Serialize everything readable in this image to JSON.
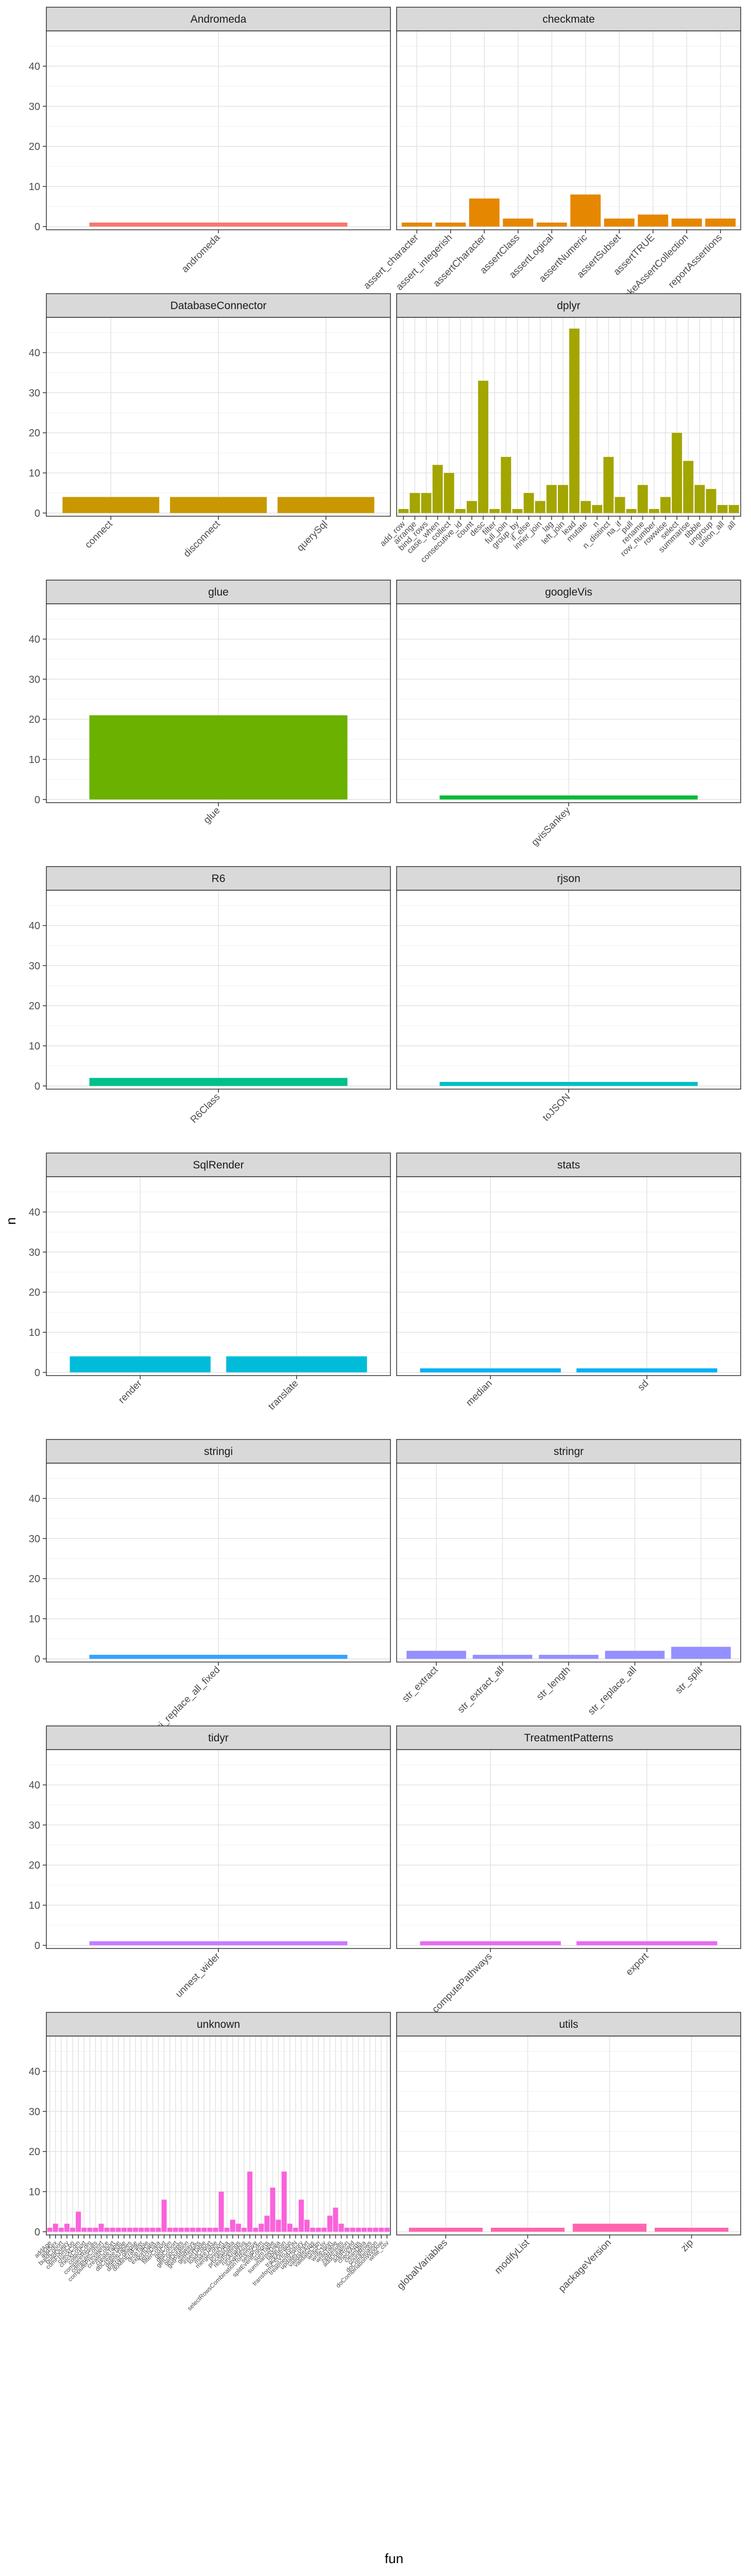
{
  "chart_data": {
    "type": "bar",
    "facet_layout": "ncol-2",
    "xlabel": "fun",
    "ylabel": "n",
    "ylim": [
      0,
      48
    ],
    "yticks": [
      0,
      10,
      20,
      30,
      40
    ],
    "grid": true,
    "legend": "none",
    "strip_fill": "#d9d9d9",
    "panels": [
      {
        "title": "Andromeda",
        "color": "#F8766D",
        "categories": [
          "andromeda"
        ],
        "values": [
          1
        ]
      },
      {
        "title": "checkmate",
        "color": "#E58700",
        "categories": [
          "assert_character",
          "assert_integerish",
          "assertCharacter",
          "assertClass",
          "assertLogical",
          "assertNumeric",
          "assertSubset",
          "assertTRUE",
          "makeAssertCollection",
          "reportAssertions"
        ],
        "values": [
          1,
          1,
          7,
          2,
          1,
          8,
          2,
          3,
          2,
          2
        ]
      },
      {
        "title": "DatabaseConnector",
        "color": "#C99800",
        "categories": [
          "connect",
          "disconnect",
          "querySql"
        ],
        "values": [
          4,
          4,
          4
        ]
      },
      {
        "title": "dplyr",
        "color": "#A3A500",
        "categories": [
          "add_row",
          "arrange",
          "bind_rows",
          "case_when",
          "collect",
          "consecutive_id",
          "count",
          "desc",
          "filter",
          "full_join",
          "group_by",
          "if_else",
          "inner_join",
          "lag",
          "left_join",
          "lead",
          "mutate",
          "n",
          "n_distinct",
          "na_if",
          "pull",
          "rename",
          "row_number",
          "rowwise",
          "select",
          "summarise",
          "tibble",
          "ungroup",
          "union_all",
          "all"
        ],
        "values": [
          1,
          5,
          5,
          12,
          10,
          1,
          3,
          33,
          1,
          14,
          1,
          5,
          3,
          7,
          7,
          46,
          3,
          2,
          14,
          4,
          1,
          7,
          1,
          4,
          20,
          13,
          7,
          6,
          2,
          2
        ]
      },
      {
        "title": "glue",
        "color": "#6BB100",
        "categories": [
          "glue"
        ],
        "values": [
          21
        ]
      },
      {
        "title": "googleVis",
        "color": "#00BA38",
        "categories": [
          "gvisSankey"
        ],
        "values": [
          1
        ]
      },
      {
        "title": "R6",
        "color": "#00C08B",
        "categories": [
          "R6Class"
        ],
        "values": [
          2
        ]
      },
      {
        "title": "rjson",
        "color": "#00BFC4",
        "categories": [
          "toJSON"
        ],
        "values": [
          1
        ]
      },
      {
        "title": "SqlRender",
        "color": "#00BCD8",
        "categories": [
          "render",
          "translate"
        ],
        "values": [
          4,
          4
        ]
      },
      {
        "title": "stats",
        "color": "#00B0F6",
        "categories": [
          "median",
          "sd"
        ],
        "values": [
          1,
          1
        ]
      },
      {
        "title": "stringi",
        "color": "#35A2FF",
        "categories": [
          "stri_replace_all_fixed"
        ],
        "values": [
          1
        ]
      },
      {
        "title": "stringr",
        "color": "#9590FF",
        "categories": [
          "str_extract",
          "str_extract_all",
          "str_length",
          "str_replace_all",
          "str_split"
        ],
        "values": [
          2,
          1,
          1,
          2,
          3
        ]
      },
      {
        "title": "tidyr",
        "color": "#C77CFF",
        "categories": [
          "unnest_wider"
        ],
        "values": [
          1
        ]
      },
      {
        "title": "TreatmentPatterns",
        "color": "#E76BF3",
        "categories": [
          "computePathways",
          "export"
        ],
        "values": [
          1,
          1
        ]
      },
      {
        "title": "unknown",
        "color": "#FA62DB",
        "categories": [
          "addAge",
          "addSex",
          "buildCohort",
          "buildQuery",
          "cdmFromCon",
          "checkCdm",
          "checkCohort",
          "collectCdm",
          "compareResults",
          "computeCohort",
          "computePrevalence",
          "createCohort",
          "createTable",
          "dbCreateTable",
          "deleteTables",
          "doEraCollapse",
          "doMinEraFilter",
          "dropTable",
          "exportData",
          "fetchData",
          "filterCohort",
          "getCdm",
          "getCohort",
          "getConcepts",
          "getDuration",
          "getPathways",
          "getResults",
          "insertTable",
          "loadCohort",
          "makeTable",
          "mergeCohort",
          "prepData",
          "processData",
          "readSettings",
          "runAnalysis",
          "saveResults",
          "selectRowsCombinationToRemove",
          "setupCdm",
          "splitEventCohorts",
          "sumTable",
          "summariseData",
          "tableJoin",
          "trackAttrition",
          "transformCSVtoJSON",
          "treatmentHistory",
          "updateCohort",
          "validateArgs",
          "validateCdm",
          "writeCsv",
          "writeJson",
          "writeTable",
          "zipResults",
          "addDuration",
          "addRowId",
          "checkArgs",
          "cleanData",
          "countRows",
          "doCombination",
          "doCombinationWindow",
          "write_csv"
        ],
        "values": [
          1,
          2,
          1,
          2,
          1,
          5,
          1,
          1,
          1,
          2,
          1,
          1,
          1,
          1,
          1,
          1,
          1,
          1,
          1,
          1,
          8,
          1,
          1,
          1,
          1,
          1,
          1,
          1,
          1,
          1,
          10,
          1,
          3,
          2,
          1,
          15,
          1,
          2,
          4,
          11,
          3,
          15,
          2,
          1,
          8,
          3,
          1,
          1,
          1,
          4,
          6,
          2,
          1,
          1,
          1,
          1,
          1,
          1,
          1,
          1
        ]
      },
      {
        "title": "utils",
        "color": "#FF65AE",
        "categories": [
          "globalVariables",
          "modifyList",
          "packageVersion",
          "zip"
        ],
        "values": [
          1,
          1,
          2,
          1
        ]
      }
    ]
  }
}
